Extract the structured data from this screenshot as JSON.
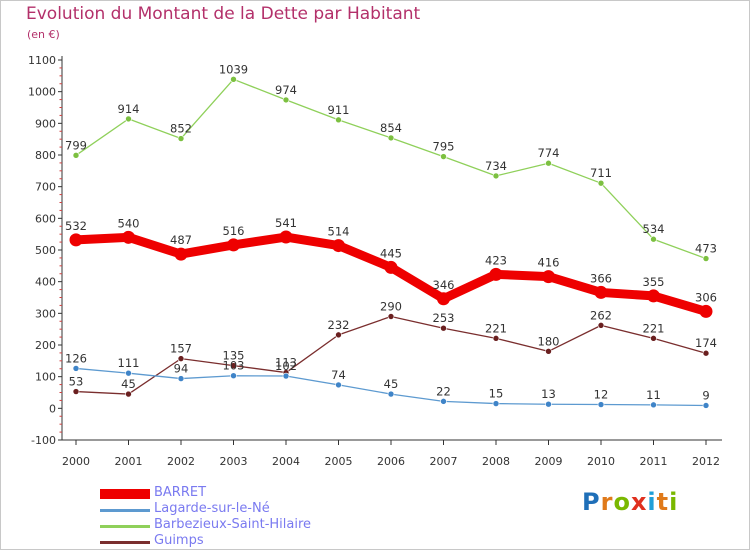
{
  "title": "Evolution du Montant de la Dette par Habitant",
  "subtitle": "(en €)",
  "logo": {
    "text": "Proxiti",
    "letters": [
      {
        "ch": "P",
        "color": "#1f6fb8"
      },
      {
        "ch": "r",
        "color": "#e07a1a"
      },
      {
        "ch": "o",
        "color": "#7ab800"
      },
      {
        "ch": "x",
        "color": "#e0301e"
      },
      {
        "ch": "i",
        "color": "#1f9fd8"
      },
      {
        "ch": "t",
        "color": "#e07a1a"
      },
      {
        "ch": "i",
        "color": "#7ab800"
      }
    ]
  },
  "chart_data": {
    "type": "line",
    "title": "Evolution du Montant de la Dette par Habitant",
    "subtitle": "(en €)",
    "xlabel": "",
    "ylabel": "",
    "x": [
      "2000",
      "2001",
      "2002",
      "2003",
      "2004",
      "2005",
      "2006",
      "2007",
      "2008",
      "2009",
      "2010",
      "2011",
      "2012"
    ],
    "ylim": [
      -100,
      1100
    ],
    "yticks": [
      -100,
      0,
      100,
      200,
      300,
      400,
      500,
      600,
      700,
      800,
      900,
      1000,
      1100
    ],
    "grid": false,
    "legend": "bottom-left",
    "series": [
      {
        "name": "Barbezieux-Saint-Hilaire",
        "color": "#8fd05a",
        "marker": "#7cc040",
        "values": [
          799,
          914,
          852,
          1039,
          974,
          911,
          854,
          795,
          734,
          774,
          711,
          534,
          473
        ]
      },
      {
        "name": "Guimps",
        "color": "#7a2e2e",
        "marker": "#6a1f1f",
        "values": [
          53,
          45,
          157,
          135,
          113,
          232,
          290,
          253,
          221,
          180,
          262,
          221,
          174
        ]
      },
      {
        "name": "Lagarde-sur-le-Né",
        "color": "#5d9ad0",
        "marker": "#3f84c8",
        "values": [
          126,
          111,
          94,
          103,
          102,
          74,
          45,
          22,
          15,
          13,
          12,
          11,
          9
        ]
      },
      {
        "name": "BARRET",
        "color": "#ee0000",
        "marker": "#ee0000",
        "values": [
          532,
          540,
          487,
          516,
          541,
          514,
          445,
          346,
          423,
          416,
          366,
          355,
          306
        ]
      }
    ]
  },
  "legend_items": [
    {
      "name": "BARRET",
      "color": "#ee0000",
      "thick": true
    },
    {
      "name": "Lagarde-sur-le-Né",
      "color": "#5d9ad0",
      "thick": false
    },
    {
      "name": "Barbezieux-Saint-Hilaire",
      "color": "#8fd05a",
      "thick": false
    },
    {
      "name": "Guimps",
      "color": "#7a2e2e",
      "thick": false
    }
  ]
}
